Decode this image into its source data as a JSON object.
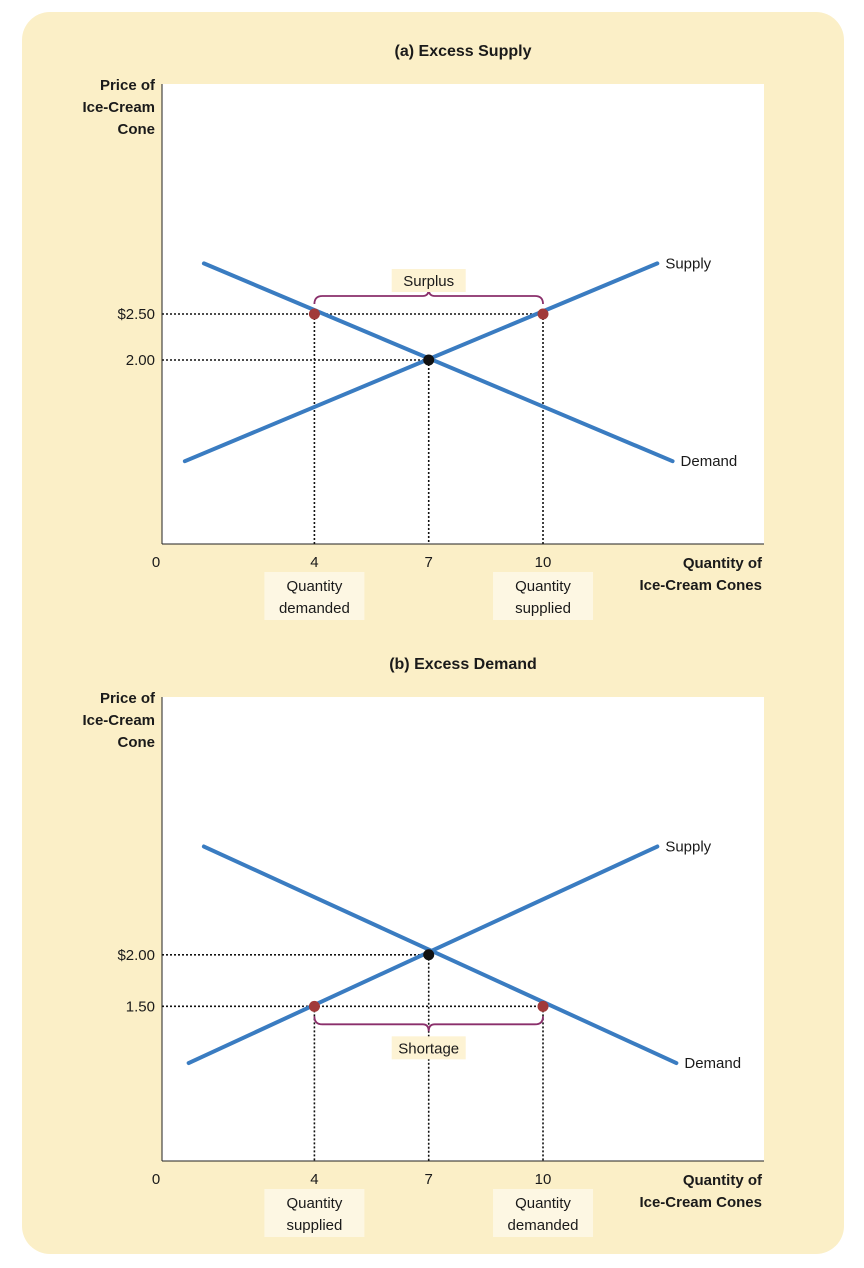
{
  "chart_data": [
    {
      "type": "line",
      "title": "(a) Excess Supply",
      "ylabel": [
        "Price of",
        "Ice-Cream",
        "Cone"
      ],
      "xlabel": [
        "Quantity of",
        "Ice-Cream Cones"
      ],
      "origin_label": "0",
      "xlim": [
        0,
        15.8
      ],
      "ylim": [
        0,
        5
      ],
      "series": [
        {
          "name": "Supply",
          "x": [
            0.6,
            13
          ],
          "y": [
            0.9,
            3.05
          ],
          "color": "#3a7cc1"
        },
        {
          "name": "Demand",
          "x": [
            1.1,
            13.4
          ],
          "y": [
            3.05,
            0.9
          ],
          "color": "#3a7cc1"
        }
      ],
      "price_ticks": [
        {
          "value": 2.5,
          "label": "$2.50"
        },
        {
          "value": 2.0,
          "label": "2.00"
        }
      ],
      "quantity_ticks": [
        {
          "value": 4,
          "label": "4"
        },
        {
          "value": 7,
          "label": "7"
        },
        {
          "value": 10,
          "label": "10"
        }
      ],
      "points": [
        {
          "x": 4,
          "y": 2.5,
          "color": "#a13a3a"
        },
        {
          "x": 10,
          "y": 2.5,
          "color": "#a13a3a"
        },
        {
          "x": 7,
          "y": 2.0,
          "color": "#111111"
        }
      ],
      "bracket": {
        "x1": 4,
        "x2": 10,
        "y": 2.5,
        "side": "above",
        "label": "Surplus",
        "color": "#8a2f6b"
      },
      "quantity_labels": [
        {
          "x": 4,
          "lines": [
            "Quantity",
            "demanded"
          ]
        },
        {
          "x": 10,
          "lines": [
            "Quantity",
            "supplied"
          ]
        }
      ]
    },
    {
      "type": "line",
      "title": "(b) Excess Demand",
      "ylabel": [
        "Price of",
        "Ice-Cream",
        "Cone"
      ],
      "xlabel": [
        "Quantity of",
        "Ice-Cream Cones"
      ],
      "origin_label": "0",
      "xlim": [
        0,
        15.8
      ],
      "ylim": [
        0,
        4.5
      ],
      "series": [
        {
          "name": "Supply",
          "x": [
            0.7,
            13
          ],
          "y": [
            0.95,
            3.05
          ],
          "color": "#3a7cc1"
        },
        {
          "name": "Demand",
          "x": [
            1.1,
            13.5
          ],
          "y": [
            3.05,
            0.95
          ],
          "color": "#3a7cc1"
        }
      ],
      "price_ticks": [
        {
          "value": 2.0,
          "label": "$2.00"
        },
        {
          "value": 1.5,
          "label": "1.50"
        }
      ],
      "quantity_ticks": [
        {
          "value": 4,
          "label": "4"
        },
        {
          "value": 7,
          "label": "7"
        },
        {
          "value": 10,
          "label": "10"
        }
      ],
      "points": [
        {
          "x": 4,
          "y": 1.5,
          "color": "#a13a3a"
        },
        {
          "x": 10,
          "y": 1.5,
          "color": "#a13a3a"
        },
        {
          "x": 7,
          "y": 2.0,
          "color": "#111111"
        }
      ],
      "bracket": {
        "x1": 4,
        "x2": 10,
        "y": 1.5,
        "side": "below",
        "label": "Shortage",
        "color": "#8a2f6b"
      },
      "quantity_labels": [
        {
          "x": 4,
          "lines": [
            "Quantity",
            "supplied"
          ]
        },
        {
          "x": 10,
          "lines": [
            "Quantity",
            "demanded"
          ]
        }
      ]
    }
  ]
}
